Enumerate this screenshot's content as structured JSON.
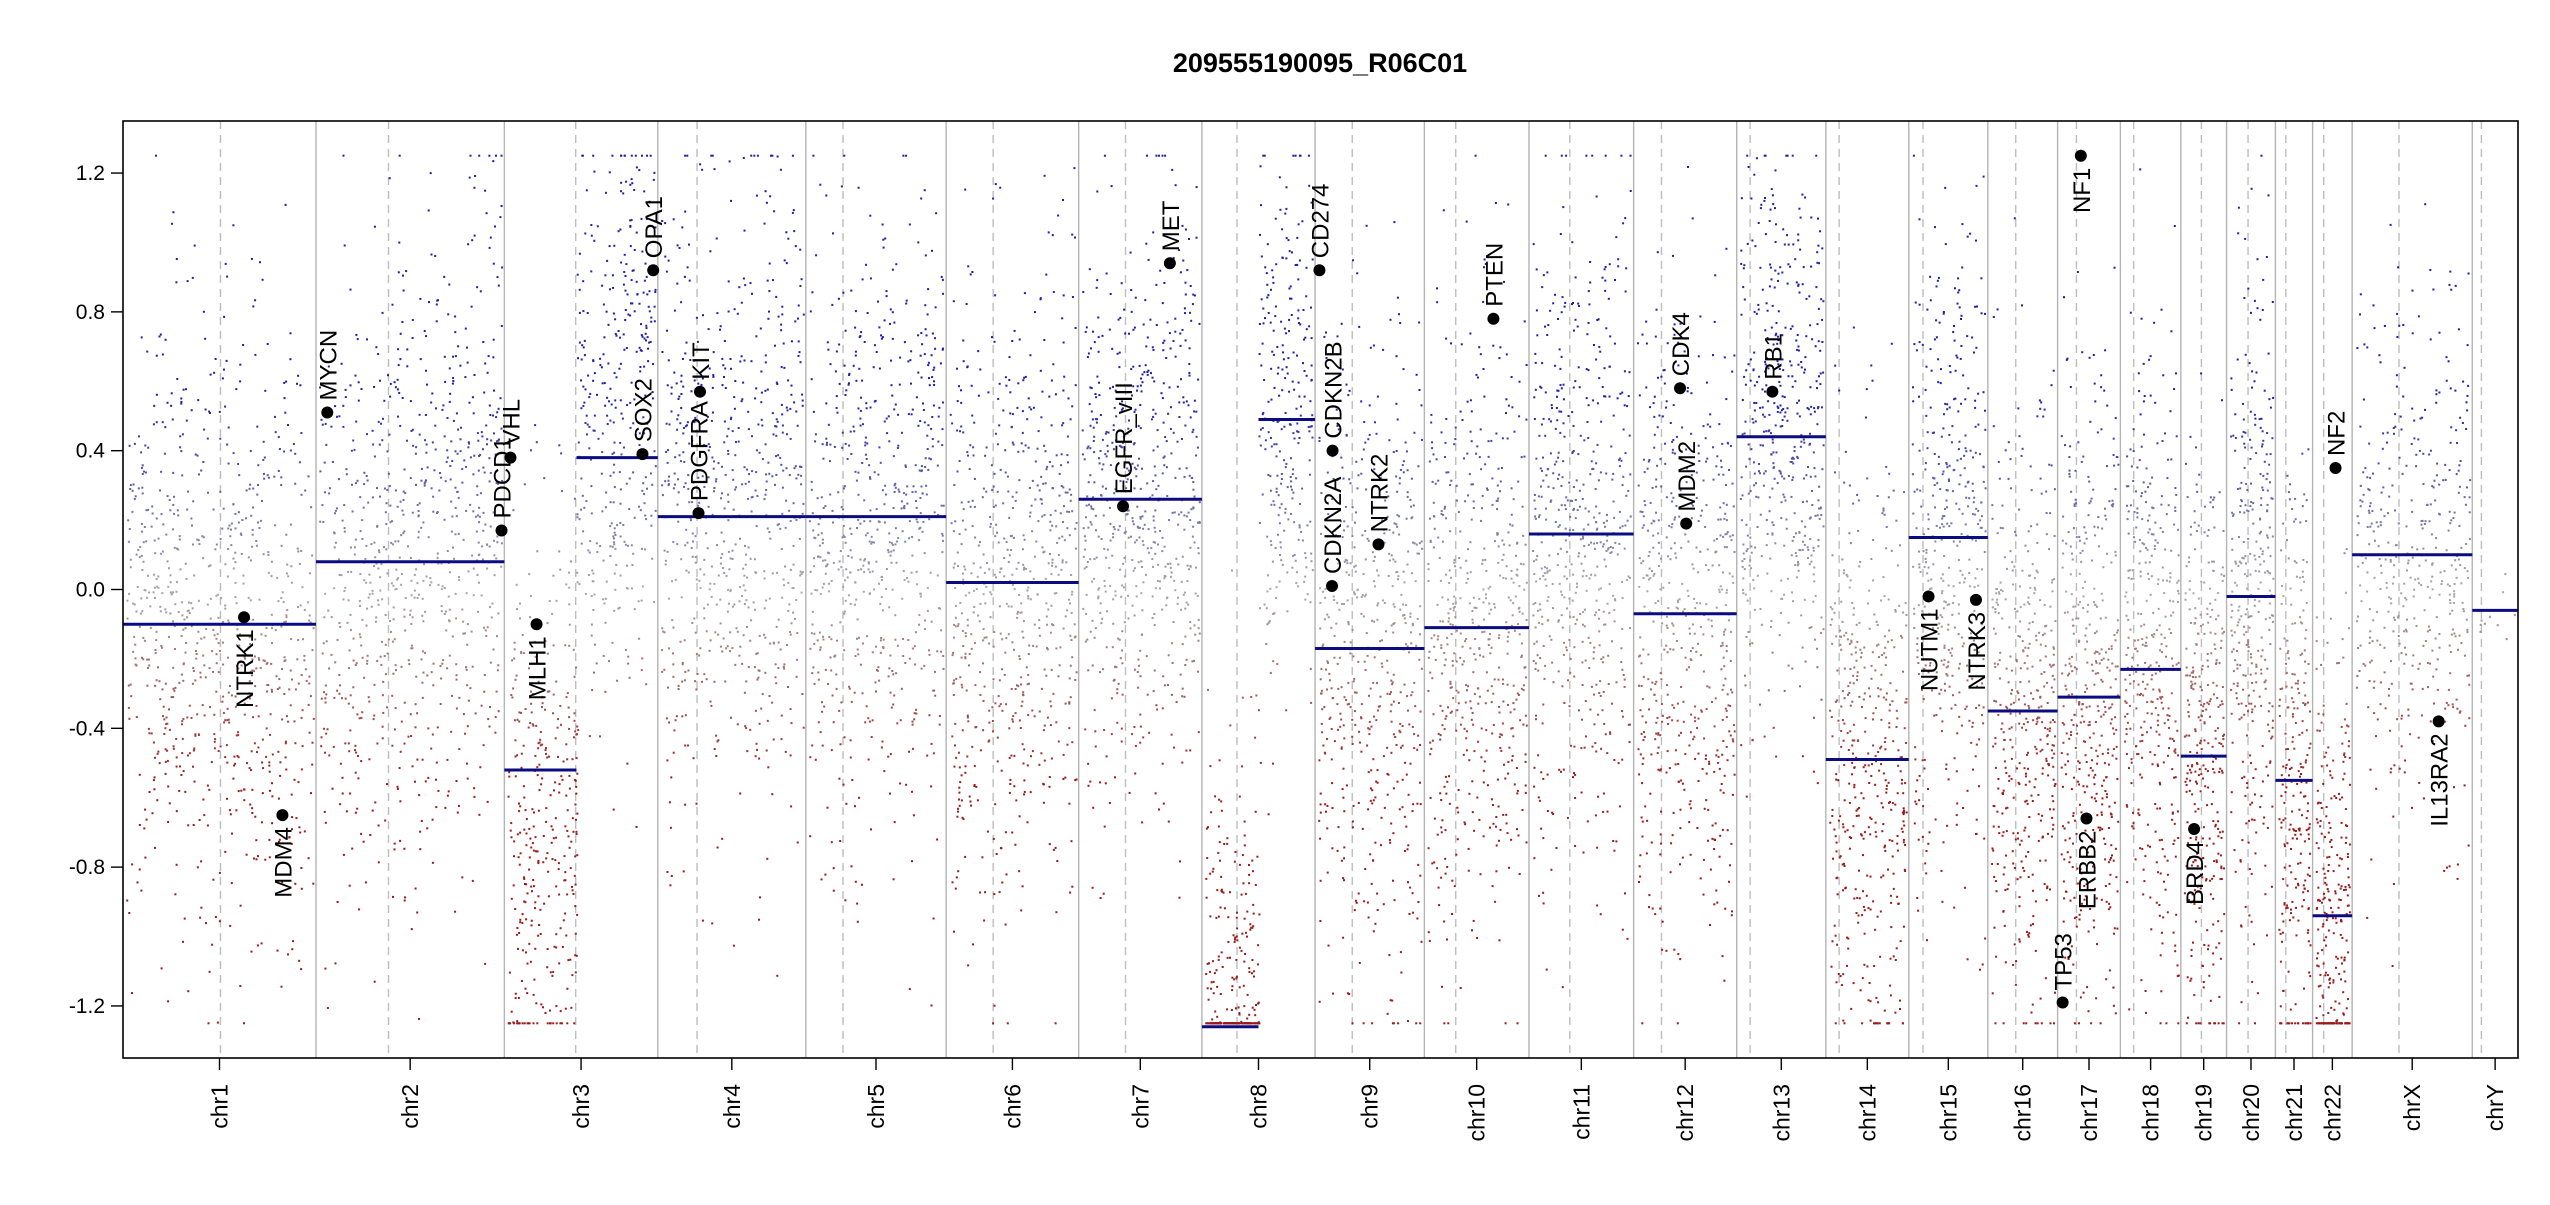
{
  "chart_data": {
    "type": "scatter",
    "title": "209555190095_R06C01",
    "xlabel": "",
    "ylabel": "",
    "ylim": [
      -1.35,
      1.35
    ],
    "y_ticks": [
      1.2,
      0.8,
      0.4,
      0.0,
      -0.4,
      -0.8,
      -1.2
    ],
    "y_tick_labels": [
      "1.2",
      "0.8",
      "0.4",
      "0.0",
      "-0.4",
      "-0.8",
      "-1.2"
    ],
    "clip_limit": 1.25,
    "colors": {
      "gain": "#1f1fa8",
      "loss": "#9b1a1a",
      "neutral": "#a8a8a8",
      "segment": "#0c0c82",
      "boundary": "#b4b4b4",
      "centromere": "#bdbdbd",
      "gene_marker": "#000000"
    },
    "chromosomes": [
      {
        "name": "chr1",
        "label": "chr1",
        "length": 249,
        "centromere": 0.505,
        "segment": -0.1,
        "spread": 0.42,
        "density": 800,
        "tilt": -0.18
      },
      {
        "name": "chr2",
        "label": "chr2",
        "length": 243,
        "centromere": 0.385,
        "segment": 0.08,
        "spread": 0.45,
        "density": 780,
        "tilt": 0.28
      },
      {
        "name": "chr3",
        "label": "chr3",
        "length": 198,
        "centromere": 0.465,
        "segment": -0.52,
        "spread": 0.42,
        "density": 700,
        "tilt": 0.55,
        "split": {
          "at": 0.47,
          "segment2": 0.38
        }
      },
      {
        "name": "chr4",
        "label": "chr4",
        "length": 191,
        "centromere": 0.265,
        "segment": 0.21,
        "spread": 0.45,
        "density": 640,
        "tilt": 0.05
      },
      {
        "name": "chr5",
        "label": "chr5",
        "length": 181,
        "centromere": 0.265,
        "segment": 0.21,
        "spread": 0.45,
        "density": 620,
        "tilt": 0.1
      },
      {
        "name": "chr6",
        "label": "chr6",
        "length": 171,
        "centromere": 0.355,
        "segment": 0.02,
        "spread": 0.45,
        "density": 620,
        "tilt": 0.18
      },
      {
        "name": "chr7",
        "label": "chr7",
        "length": 159,
        "centromere": 0.38,
        "segment": 0.26,
        "spread": 0.45,
        "density": 600,
        "tilt": 0.05
      },
      {
        "name": "chr8",
        "label": "chr8",
        "length": 146,
        "centromere": 0.31,
        "segment": 0.49,
        "spread": 0.4,
        "density": 560,
        "tilt": 0.0,
        "split": {
          "at": 0.5,
          "segment1": -1.26,
          "segment2": 0.49
        }
      },
      {
        "name": "chr9",
        "label": "chr9",
        "length": 141,
        "centromere": 0.34,
        "segment": -0.17,
        "spread": 0.45,
        "density": 520,
        "tilt": 0.12
      },
      {
        "name": "chr10",
        "label": "chr10",
        "length": 135,
        "centromere": 0.3,
        "segment": -0.11,
        "spread": 0.45,
        "density": 510,
        "tilt": 0.08
      },
      {
        "name": "chr11",
        "label": "chr11",
        "length": 135,
        "centromere": 0.39,
        "segment": 0.16,
        "spread": 0.45,
        "density": 540,
        "tilt": 0.05
      },
      {
        "name": "chr12",
        "label": "chr12",
        "length": 133,
        "centromere": 0.27,
        "segment": -0.07,
        "spread": 0.45,
        "density": 520,
        "tilt": -0.05
      },
      {
        "name": "chr13",
        "label": "chr13",
        "length": 115,
        "centromere": 0.15,
        "segment": 0.44,
        "spread": 0.4,
        "density": 450,
        "tilt": 0.0
      },
      {
        "name": "chr14",
        "label": "chr14",
        "length": 107,
        "centromere": 0.16,
        "segment": -0.49,
        "spread": 0.42,
        "density": 420,
        "tilt": 0.0
      },
      {
        "name": "chr15",
        "label": "chr15",
        "length": 102,
        "centromere": 0.18,
        "segment": 0.15,
        "spread": 0.45,
        "density": 420,
        "tilt": 0.0
      },
      {
        "name": "chr16",
        "label": "chr16",
        "length": 90,
        "centromere": 0.4,
        "segment": -0.35,
        "spread": 0.42,
        "density": 400,
        "tilt": 0.0
      },
      {
        "name": "chr17",
        "label": "chr17",
        "length": 81,
        "centromere": 0.3,
        "segment": -0.31,
        "spread": 0.45,
        "density": 400,
        "tilt": 0.0
      },
      {
        "name": "chr18",
        "label": "chr18",
        "length": 78,
        "centromere": 0.22,
        "segment": -0.23,
        "spread": 0.45,
        "density": 360,
        "tilt": 0.0
      },
      {
        "name": "chr19",
        "label": "chr19",
        "length": 59,
        "centromere": 0.45,
        "segment": -0.48,
        "spread": 0.42,
        "density": 320,
        "tilt": 0.0
      },
      {
        "name": "chr20",
        "label": "chr20",
        "length": 63,
        "centromere": 0.44,
        "segment": -0.02,
        "spread": 0.45,
        "density": 320,
        "tilt": 0.0
      },
      {
        "name": "chr21",
        "label": "chr21",
        "length": 48,
        "centromere": 0.28,
        "segment": -0.55,
        "spread": 0.42,
        "density": 240,
        "tilt": 0.0
      },
      {
        "name": "chr22",
        "label": "chr22",
        "length": 51,
        "centromere": 0.28,
        "segment": -0.94,
        "spread": 0.38,
        "density": 260,
        "tilt": 0.0
      },
      {
        "name": "chrX",
        "label": "chrX",
        "length": 155,
        "centromere": 0.39,
        "segment": 0.1,
        "spread": 0.4,
        "density": 420,
        "tilt": 0.0
      },
      {
        "name": "chrY",
        "label": "chrY",
        "length": 59,
        "centromere": 0.2,
        "segment": -0.06,
        "spread": 0.05,
        "density": 10,
        "tilt": 0.0
      }
    ],
    "genes": [
      {
        "name": "NTRK1",
        "chrom": "chr1",
        "pos": 0.627,
        "value": -0.08,
        "label_dir": "down"
      },
      {
        "name": "MDM4",
        "chrom": "chr1",
        "pos": 0.826,
        "value": -0.65,
        "label_dir": "down"
      },
      {
        "name": "MYCN",
        "chrom": "chr2",
        "pos": 0.06,
        "value": 0.51,
        "label_dir": "up"
      },
      {
        "name": "PDCD1",
        "chrom": "chr2",
        "pos": 0.985,
        "value": 0.17,
        "label_dir": "up"
      },
      {
        "name": "VHL",
        "chrom": "chr3",
        "pos": 0.04,
        "value": 0.38,
        "label_dir": "up"
      },
      {
        "name": "MLH1",
        "chrom": "chr3",
        "pos": 0.21,
        "value": -0.1,
        "label_dir": "down"
      },
      {
        "name": "SOX2",
        "chrom": "chr3",
        "pos": 0.9,
        "value": 0.39,
        "label_dir": "up"
      },
      {
        "name": "OPA1",
        "chrom": "chr3",
        "pos": 0.97,
        "value": 0.92,
        "label_dir": "up"
      },
      {
        "name": "PDGFRA",
        "chrom": "chr4",
        "pos": 0.275,
        "value": 0.22,
        "label_dir": "up"
      },
      {
        "name": "KIT",
        "chrom": "chr4",
        "pos": 0.285,
        "value": 0.57,
        "label_dir": "up"
      },
      {
        "name": "EGFR_vIII",
        "chrom": "chr7",
        "pos": 0.36,
        "value": 0.24,
        "label_dir": "up"
      },
      {
        "name": "MET",
        "chrom": "chr7",
        "pos": 0.74,
        "value": 0.94,
        "label_dir": "up"
      },
      {
        "name": "CD274",
        "chrom": "chr9",
        "pos": 0.04,
        "value": 0.92,
        "label_dir": "up"
      },
      {
        "name": "CDKN2B",
        "chrom": "chr9",
        "pos": 0.16,
        "value": 0.4,
        "label_dir": "up"
      },
      {
        "name": "CDKN2A",
        "chrom": "chr9",
        "pos": 0.155,
        "value": 0.01,
        "label_dir": "up"
      },
      {
        "name": "NTRK2",
        "chrom": "chr9",
        "pos": 0.58,
        "value": 0.13,
        "label_dir": "up"
      },
      {
        "name": "PTEN",
        "chrom": "chr10",
        "pos": 0.66,
        "value": 0.78,
        "label_dir": "up"
      },
      {
        "name": "CDK4",
        "chrom": "chr12",
        "pos": 0.45,
        "value": 0.58,
        "label_dir": "up"
      },
      {
        "name": "MDM2",
        "chrom": "chr12",
        "pos": 0.51,
        "value": 0.19,
        "label_dir": "up"
      },
      {
        "name": "RB1",
        "chrom": "chr13",
        "pos": 0.4,
        "value": 0.57,
        "label_dir": "up"
      },
      {
        "name": "NUTM1",
        "chrom": "chr15",
        "pos": 0.25,
        "value": -0.02,
        "label_dir": "down"
      },
      {
        "name": "NTRK3",
        "chrom": "chr15",
        "pos": 0.85,
        "value": -0.03,
        "label_dir": "down"
      },
      {
        "name": "TP53",
        "chrom": "chr17",
        "pos": 0.08,
        "value": -1.19,
        "label_dir": "up"
      },
      {
        "name": "NF1",
        "chrom": "chr17",
        "pos": 0.37,
        "value": 1.25,
        "label_dir": "down"
      },
      {
        "name": "ERBB2",
        "chrom": "chr17",
        "pos": 0.46,
        "value": -0.66,
        "label_dir": "down"
      },
      {
        "name": "BRD4",
        "chrom": "chr19",
        "pos": 0.29,
        "value": -0.69,
        "label_dir": "down"
      },
      {
        "name": "NF2",
        "chrom": "chr22",
        "pos": 0.58,
        "value": 0.35,
        "label_dir": "up"
      },
      {
        "name": "IL13RA2",
        "chrom": "chrX",
        "pos": 0.72,
        "value": -0.38,
        "label_dir": "down"
      }
    ]
  }
}
